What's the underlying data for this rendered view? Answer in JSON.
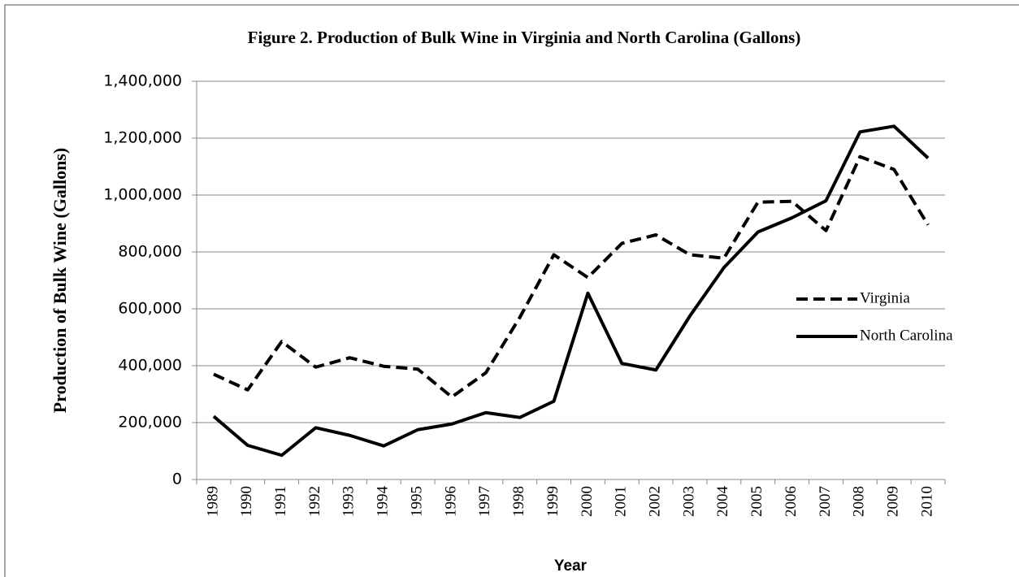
{
  "chart_data": {
    "type": "line",
    "title": "Figure 2. Production of Bulk Wine in Virginia and North Carolina (Gallons)",
    "y_label": "Production of Bulk Wine (Gallons)",
    "x_label": "Year",
    "categories": [
      "1989",
      "1990",
      "1991",
      "1992",
      "1993",
      "1994",
      "1995",
      "1996",
      "1997",
      "1998",
      "1999",
      "2000",
      "2001",
      "2002",
      "2003",
      "2004",
      "2005",
      "2006",
      "2007",
      "2008",
      "2009",
      "2010"
    ],
    "series": [
      {
        "name": "Virginia",
        "color": "#000000",
        "dash": "dashed",
        "values": [
          370000,
          315000,
          485000,
          395000,
          428000,
          398000,
          388000,
          290000,
          375000,
          570000,
          790000,
          710000,
          830000,
          860000,
          790000,
          778000,
          975000,
          978000,
          875000,
          1135000,
          1090000,
          895000
        ]
      },
      {
        "name": "North Carolina",
        "color": "#000000",
        "dash": "solid",
        "values": [
          222000,
          120000,
          85000,
          182000,
          155000,
          118000,
          175000,
          195000,
          235000,
          218000,
          275000,
          655000,
          408000,
          385000,
          575000,
          745000,
          870000,
          920000,
          980000,
          1222000,
          1242000,
          1130000
        ]
      }
    ],
    "ylim": [
      0,
      1400000
    ],
    "yticks": [
      0,
      {
        "value": 200000,
        "label": "200,000"
      },
      {
        "value": 400000,
        "label": "400,000"
      },
      {
        "value": 600000,
        "label": "600,000"
      },
      {
        "value": 800000,
        "label": "800,000"
      },
      {
        "value": 1000000,
        "label": "1,000,000"
      },
      {
        "value": 1200000,
        "label": "1,200,000"
      },
      {
        "value": 1400000,
        "label": "1,400,000"
      }
    ],
    "grid": true,
    "legend": "right"
  }
}
